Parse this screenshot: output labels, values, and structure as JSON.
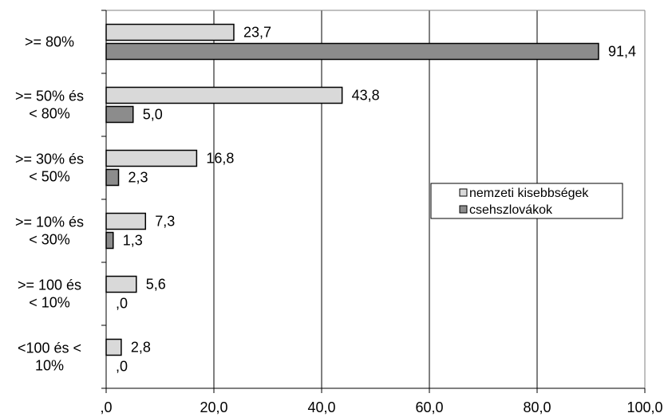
{
  "chart_data": {
    "type": "bar",
    "orientation": "horizontal",
    "categories": [
      [
        ">= 80%"
      ],
      [
        ">= 50% és",
        "< 80%"
      ],
      [
        ">= 30% és",
        "< 50%"
      ],
      [
        ">= 10% és",
        "< 30%"
      ],
      [
        ">= 100 és",
        "< 10%"
      ],
      [
        "<100 és <",
        "10%"
      ]
    ],
    "series": [
      {
        "name": "nemzeti kisebbségek",
        "values": [
          23.7,
          43.8,
          16.8,
          7.3,
          5.6,
          2.8
        ],
        "labels": [
          "23,7",
          "43,8",
          "16,8",
          "7,3",
          "5,6",
          "2,8"
        ],
        "color": "#d9d9d9"
      },
      {
        "name": "csehszlovákok",
        "values": [
          91.4,
          5.0,
          2.3,
          1.3,
          0.0,
          0.0
        ],
        "labels": [
          "91,4",
          "5,0",
          "2,3",
          "1,3",
          ",0",
          ",0"
        ],
        "color": "#8c8c8c"
      }
    ],
    "xlim": [
      0,
      100
    ],
    "xticks": [
      0,
      20,
      40,
      60,
      80,
      100
    ],
    "xtick_labels": [
      ",0",
      "20,0",
      "40,0",
      "60,0",
      "80,0",
      "100,0"
    ],
    "grid": "vertical",
    "legend": "right"
  }
}
